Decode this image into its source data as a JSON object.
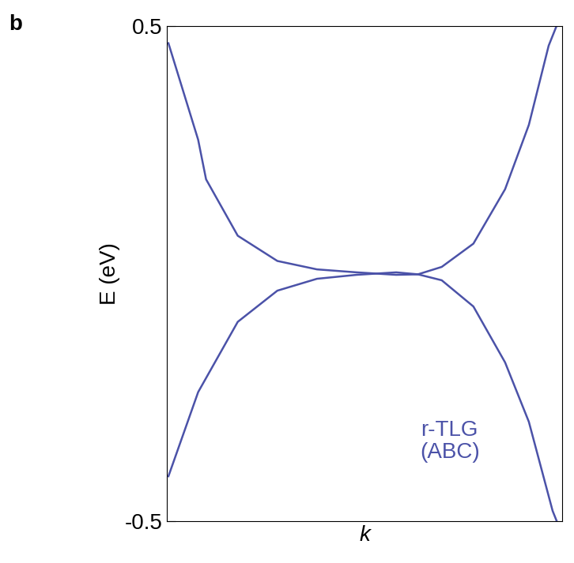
{
  "chart_data": {
    "type": "line",
    "panel_label": "b",
    "y_label": "E (eV)",
    "x_label": "k",
    "annotation": "r-TLG\n(ABC)",
    "color": "#4b52a8",
    "tick_labels": "y",
    "xlim": [
      -1,
      1
    ],
    "ylim": [
      -0.5,
      0.5
    ],
    "yticks": [
      -0.5,
      0.5
    ],
    "series": [
      {
        "color": "#4b52a8",
        "x": [
          -0.99,
          -0.84,
          -0.8,
          -0.64,
          -0.44,
          -0.24,
          -0.04,
          0.16,
          0.27,
          0.39,
          0.55,
          0.71,
          0.83,
          0.93,
          0.97
        ],
        "values": [
          0.465,
          0.27,
          0.19,
          0.076,
          0.025,
          0.008,
          0.002,
          -0.003,
          -0.002,
          0.013,
          0.06,
          0.17,
          0.3,
          0.46,
          0.5
        ]
      },
      {
        "color": "#4b52a8",
        "x": [
          -0.99,
          -0.84,
          -0.64,
          -0.44,
          -0.24,
          -0.04,
          0.16,
          0.27,
          0.39,
          0.55,
          0.71,
          0.83,
          0.95,
          0.97
        ],
        "values": [
          -0.41,
          -0.24,
          -0.098,
          -0.035,
          -0.011,
          -0.003,
          0.002,
          -0.002,
          -0.014,
          -0.067,
          -0.18,
          -0.3,
          -0.48,
          -0.5
        ]
      }
    ]
  }
}
